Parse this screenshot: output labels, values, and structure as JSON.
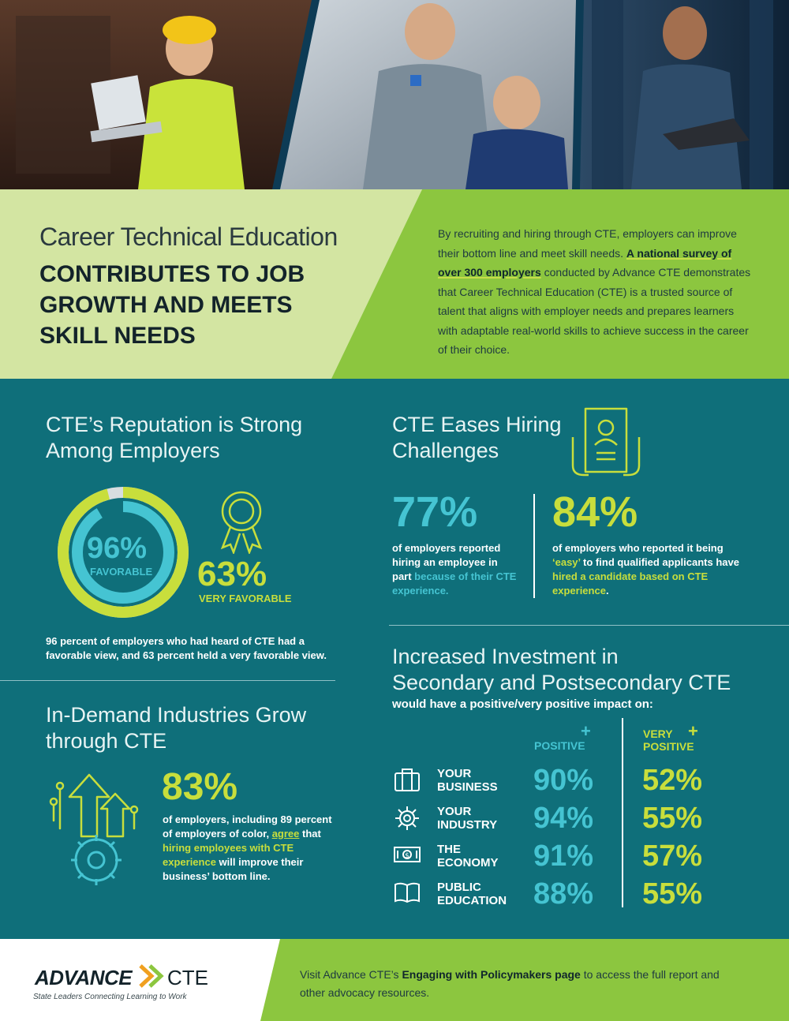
{
  "header": {
    "kicker": "Career Technical Education",
    "title": "CONTRIBUTES TO JOB GROWTH AND MEETS SKILL NEEDS",
    "intro_1": "By recruiting and hiring through CTE, employers can improve their bottom line and meet skill needs. ",
    "intro_link": "A national survey of over 300 employers",
    "intro_2": " conducted by Advance CTE demonstrates that Career Technical Education (CTE) is a trusted source of talent that aligns with employer needs and prepares learners with adaptable real-world skills to achieve success in the career of their choice."
  },
  "reputation": {
    "title_line1": "CTE’s Reputation is Strong",
    "title_line2": "Among Employers",
    "favorable_pct": "96%",
    "favorable_label": "FAVORABLE",
    "very_pct": "63%",
    "very_label": "VERY FAVORABLE",
    "caption": "96 percent of employers who had heard of CTE had a favorable view, and 63 percent held a very favorable view.",
    "favorable_value": 96,
    "very_value": 63
  },
  "hiring": {
    "title_line1": "CTE Eases Hiring",
    "title_line2": "Challenges",
    "stat1_pct": "77%",
    "stat1_a": "of employers reported hiring an employee in part ",
    "stat1_b": "because of their CTE experience.",
    "stat2_pct": "84%",
    "stat2_a": "of employers who reported it being ",
    "stat2_easy": "‘easy’",
    "stat2_b": " to find qualified applicants have ",
    "stat2_c": "hired a candidate based on CTE experience",
    "stat2_d": "."
  },
  "industries": {
    "title_line1": "In-Demand Industries Grow",
    "title_line2": "through CTE",
    "pct": "83%",
    "text_a": "of employers, including 89 percent of employers of color, ",
    "text_agree": "agree",
    "text_b": " that ",
    "text_hl": "hiring employees with CTE experience",
    "text_c": " will improve their business’ bottom line."
  },
  "investment": {
    "title_line1": "Increased Investment in",
    "title_line2": "Secondary and Postsecondary CTE",
    "subtitle": "would have a positive/very positive impact on:",
    "col1": "POSITIVE",
    "col2_line1": "VERY",
    "col2_line2": "POSITIVE",
    "rows": [
      {
        "line1": "YOUR",
        "line2": "BUSINESS",
        "positive": "90%",
        "very": "52%",
        "icon": "briefcase-icon"
      },
      {
        "line1": "YOUR",
        "line2": "INDUSTRY",
        "positive": "94%",
        "very": "55%",
        "icon": "gear-icon"
      },
      {
        "line1": "THE",
        "line2": "ECONOMY",
        "positive": "91%",
        "very": "57%",
        "icon": "money-icon"
      },
      {
        "line1": "PUBLIC",
        "line2": "EDUCATION",
        "positive": "88%",
        "very": "55%",
        "icon": "book-icon"
      }
    ]
  },
  "footer": {
    "logo_word": "ADVANCE",
    "logo_cte": "CTE",
    "logo_tag": "State Leaders Connecting Learning to Work",
    "text_a": "Visit Advance CTE’s ",
    "text_link": "Engaging with Policymakers page",
    "text_b": " to access the full report and other advocacy resources."
  },
  "colors": {
    "teal": "#0f6f7a",
    "light_teal": "#45c4d2",
    "lime": "#c8de3c",
    "pale_green": "#cfe29a",
    "green": "#8cc63f"
  }
}
